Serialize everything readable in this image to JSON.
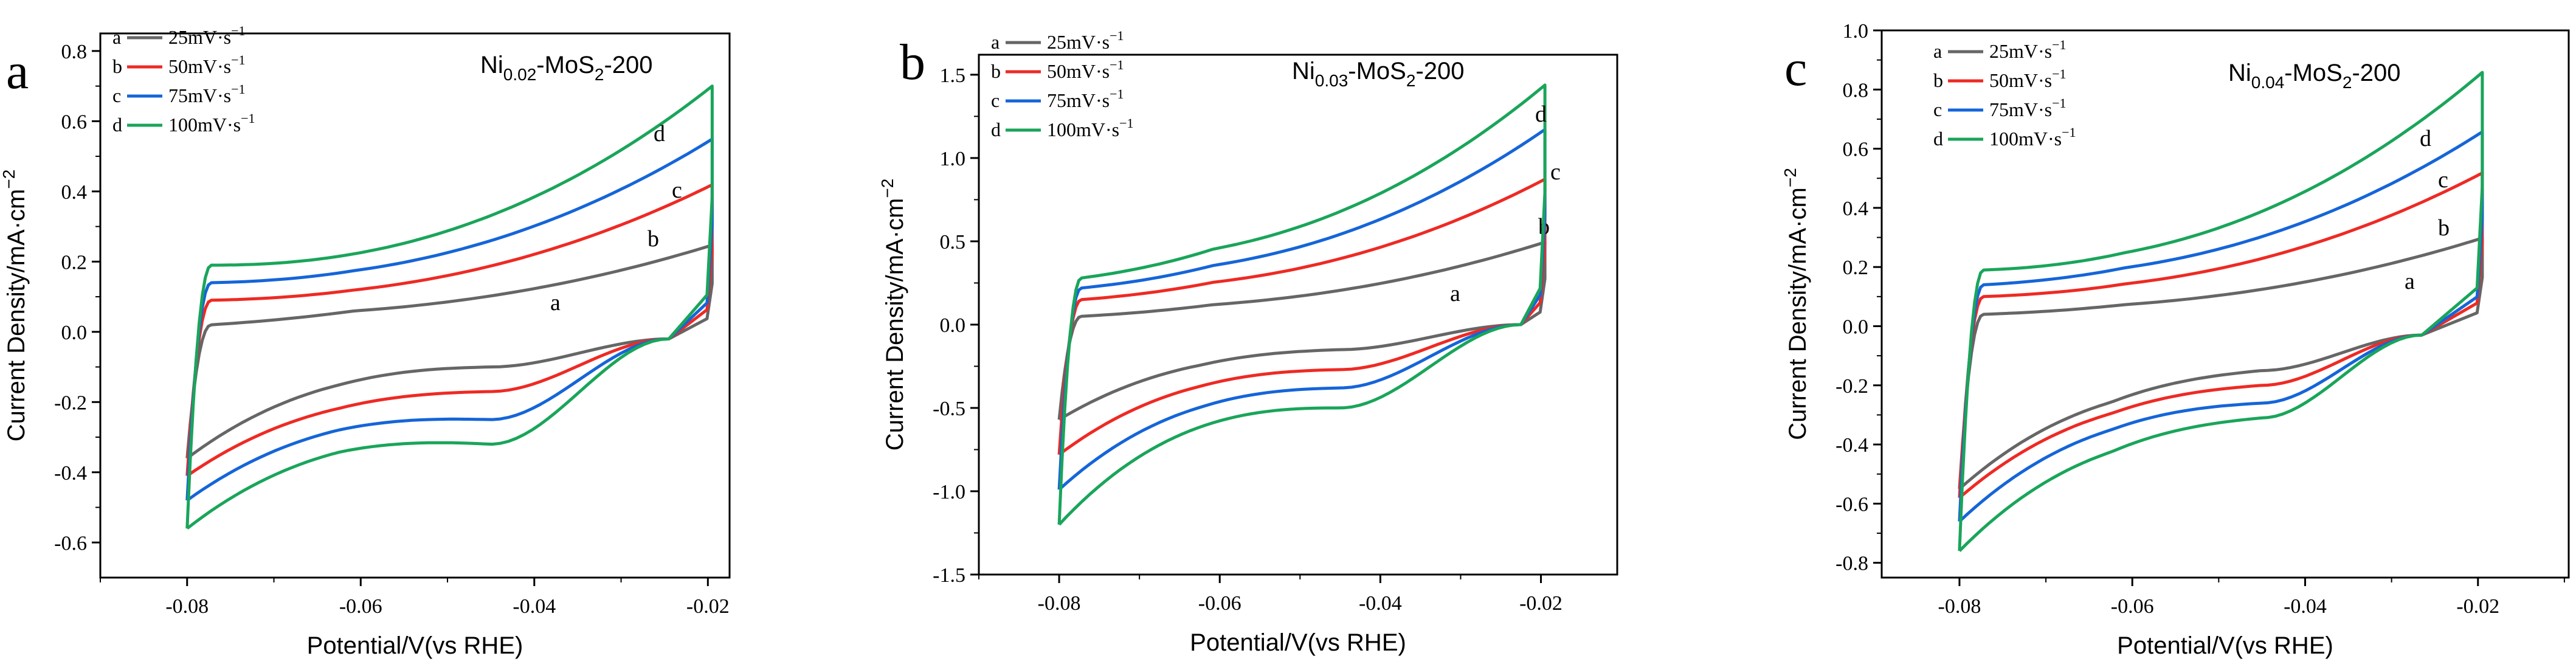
{
  "figure": {
    "scan_units": "mV·s",
    "scan_exponent": "−1"
  },
  "chart_data": [
    {
      "type": "line",
      "panel_letter": "a",
      "sample_name": "Ni",
      "sample_subscript": "0.02",
      "sample_suffix": "-MoS",
      "sample_suffix_sub": "2",
      "sample_tail": "-200",
      "xlabel": "Potential/V(vs RHE)",
      "ylabel": "Current Density/mA·cm",
      "ylabel_sup": "−2",
      "xlim": [
        -0.09,
        -0.0175
      ],
      "ylim": [
        -0.7,
        0.85
      ],
      "xticks": [
        -0.08,
        -0.06,
        -0.04,
        -0.02
      ],
      "xtick_labels": [
        "-0.08",
        "-0.06",
        "-0.04",
        "-0.02"
      ],
      "yticks": [
        -0.6,
        -0.4,
        -0.2,
        0.0,
        0.2,
        0.4,
        0.6,
        0.8
      ],
      "ytick_labels": [
        "-0.6",
        "-0.4",
        "-0.2",
        "0.0",
        "0.2",
        "0.4",
        "0.6",
        "0.8"
      ],
      "series": [
        {
          "name": "a",
          "scan_rate": "25mV·s",
          "color": "#666666",
          "upper_end": 0.25,
          "lower_end": -0.36,
          "upper_mid": 0.05,
          "lower_mid": -0.11,
          "lower_hump": -0.1,
          "tail_start": 0.02,
          "turn_x": -0.0245,
          "cross_y": -0.02
        },
        {
          "name": "b",
          "scan_rate": "50mV·s",
          "color": "#ee2a24",
          "upper_end": 0.42,
          "lower_end": -0.41,
          "upper_mid": 0.1,
          "lower_mid": -0.18,
          "lower_hump": -0.17,
          "tail_start": 0.09,
          "turn_x": -0.0245,
          "cross_y": -0.02
        },
        {
          "name": "c",
          "scan_rate": "75mV·s",
          "color": "#1565d8",
          "upper_end": 0.55,
          "lower_end": -0.48,
          "upper_mid": 0.15,
          "lower_mid": -0.24,
          "lower_hump": -0.25,
          "tail_start": 0.14,
          "turn_x": -0.0245,
          "cross_y": -0.02
        },
        {
          "name": "d",
          "scan_rate": "100mV·s",
          "color": "#1aa55a",
          "upper_end": 0.7,
          "lower_end": -0.56,
          "upper_mid": 0.19,
          "lower_mid": -0.3,
          "lower_hump": -0.32,
          "tail_start": 0.19,
          "turn_x": -0.0245,
          "cross_y": -0.02
        }
      ]
    },
    {
      "type": "line",
      "panel_letter": "b",
      "sample_name": "Ni",
      "sample_subscript": "0.03",
      "sample_suffix": "-MoS",
      "sample_suffix_sub": "2",
      "sample_tail": "-200",
      "xlabel": "Potential/V(vs RHE)",
      "ylabel": "Current Density/mA·cm",
      "ylabel_sup": "−2",
      "xlim": [
        -0.09,
        -0.0105
      ],
      "ylim": [
        -1.5,
        1.62
      ],
      "xticks": [
        -0.08,
        -0.06,
        -0.04,
        -0.02
      ],
      "xtick_labels": [
        "-0.08",
        "-0.06",
        "-0.04",
        "-0.02"
      ],
      "yticks": [
        -1.5,
        -1.0,
        -0.5,
        0.0,
        0.5,
        1.0,
        1.5
      ],
      "ytick_labels": [
        "-1.5",
        "-1.0",
        "-0.5",
        "0.0",
        "0.5",
        "1.0",
        "1.5"
      ],
      "series": [
        {
          "name": "a",
          "scan_rate": "25mV·s",
          "color": "#666666",
          "upper_end": 0.5,
          "lower_end": -0.57,
          "upper_mid": 0.1,
          "lower_mid": -0.18,
          "lower_hump": -0.15,
          "tail_start": 0.05,
          "turn_x": -0.0225,
          "cross_y": 0.0
        },
        {
          "name": "b",
          "scan_rate": "50mV·s",
          "color": "#ee2a24",
          "upper_end": 0.88,
          "lower_end": -0.78,
          "upper_mid": 0.22,
          "lower_mid": -0.29,
          "lower_hump": -0.27,
          "tail_start": 0.15,
          "turn_x": -0.0225,
          "cross_y": 0.0
        },
        {
          "name": "c",
          "scan_rate": "75mV·s",
          "color": "#1565d8",
          "upper_end": 1.18,
          "lower_end": -0.99,
          "upper_mid": 0.31,
          "lower_mid": -0.4,
          "lower_hump": -0.38,
          "tail_start": 0.22,
          "turn_x": -0.0225,
          "cross_y": 0.0
        },
        {
          "name": "d",
          "scan_rate": "100mV·s",
          "color": "#1aa55a",
          "upper_end": 1.45,
          "lower_end": -1.2,
          "upper_mid": 0.4,
          "lower_mid": -0.5,
          "lower_hump": -0.5,
          "tail_start": 0.28,
          "turn_x": -0.0225,
          "cross_y": 0.0
        }
      ]
    },
    {
      "type": "line",
      "panel_letter": "c",
      "sample_name": "Ni",
      "sample_subscript": "0.04",
      "sample_suffix": "-MoS",
      "sample_suffix_sub": "2",
      "sample_tail": "-200",
      "xlabel": "Potential/V(vs RHE)",
      "ylabel": "Current Density/mA·cm",
      "ylabel_sup": "−2",
      "xlim": [
        -0.089,
        -0.0095
      ],
      "ylim": [
        -0.85,
        1.0
      ],
      "xticks": [
        -0.08,
        -0.06,
        -0.04,
        -0.02
      ],
      "xtick_labels": [
        "-0.08",
        "-0.06",
        "-0.04",
        "-0.02"
      ],
      "yticks": [
        -0.8,
        -0.6,
        -0.4,
        -0.2,
        0.0,
        0.2,
        0.4,
        0.6,
        0.8,
        1.0
      ],
      "ytick_labels": [
        "-0.8",
        "-0.6",
        "-0.4",
        "-0.2",
        "0.0",
        "0.2",
        "0.4",
        "0.6",
        "0.8",
        "1.0"
      ],
      "series": [
        {
          "name": "a",
          "scan_rate": "25mV·s",
          "color": "#666666",
          "upper_end": 0.3,
          "lower_end": -0.55,
          "upper_mid": 0.06,
          "lower_mid": -0.2,
          "lower_hump": -0.15,
          "tail_start": 0.04,
          "turn_x": -0.0265,
          "cross_y": -0.03
        },
        {
          "name": "b",
          "scan_rate": "50mV·s",
          "color": "#ee2a24",
          "upper_end": 0.52,
          "lower_end": -0.58,
          "upper_mid": 0.12,
          "lower_mid": -0.24,
          "lower_hump": -0.2,
          "tail_start": 0.1,
          "turn_x": -0.0265,
          "cross_y": -0.03
        },
        {
          "name": "c",
          "scan_rate": "75mV·s",
          "color": "#1565d8",
          "upper_end": 0.66,
          "lower_end": -0.66,
          "upper_mid": 0.17,
          "lower_mid": -0.29,
          "lower_hump": -0.26,
          "tail_start": 0.14,
          "turn_x": -0.0265,
          "cross_y": -0.03
        },
        {
          "name": "d",
          "scan_rate": "100mV·s",
          "color": "#1aa55a",
          "upper_end": 0.86,
          "lower_end": -0.76,
          "upper_mid": 0.21,
          "lower_mid": -0.36,
          "lower_hump": -0.31,
          "tail_start": 0.19,
          "turn_x": -0.0265,
          "cross_y": -0.03
        }
      ]
    }
  ]
}
